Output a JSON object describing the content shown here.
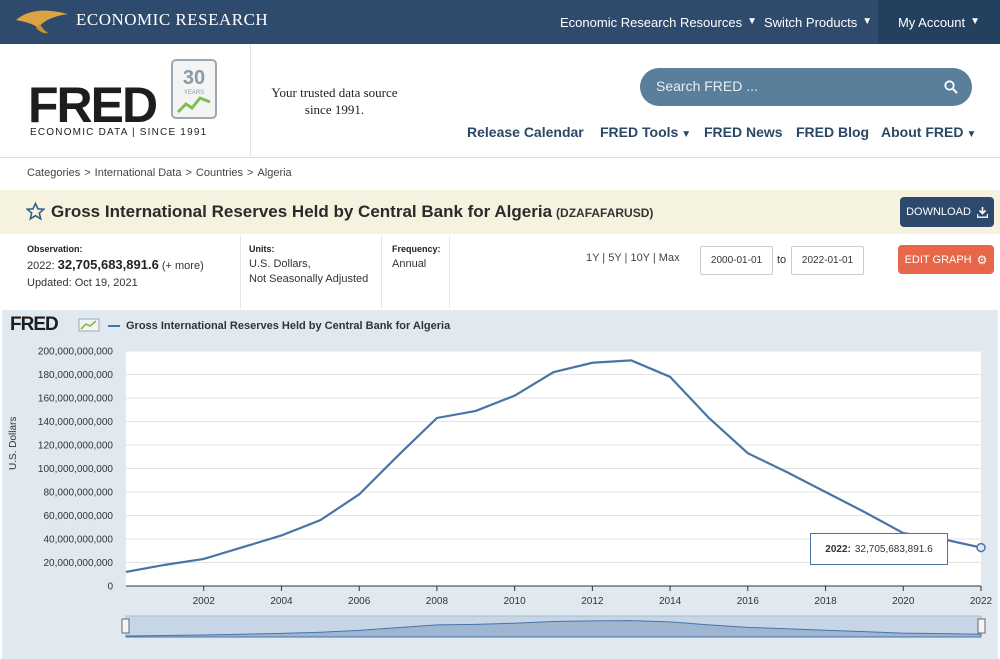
{
  "topbar": {
    "brand": "ECONOMIC RESEARCH",
    "nav_resources": "Economic Research Resources",
    "nav_switch": "Switch Products",
    "nav_account": "My Account"
  },
  "header": {
    "logo": "FRED",
    "logo_sub": "ECONOMIC DATA  |  SINCE 1991",
    "logo_badge": "30",
    "logo_badge_sub": "YEARS",
    "tagline_1": "Your trusted data source",
    "tagline_2": "since 1991.",
    "search_placeholder": "Search FRED ...",
    "nav": [
      "Release Calendar",
      "FRED Tools",
      "FRED News",
      "FRED Blog",
      "About FRED"
    ]
  },
  "breadcrumb": [
    "Categories",
    "International Data",
    "Countries",
    "Algeria"
  ],
  "series": {
    "title": "Gross International Reserves Held by Central Bank for Algeria",
    "id": "(DZAFAFARUSD)",
    "download_label": "DOWNLOAD"
  },
  "meta": {
    "observation_label": "Observation:",
    "observation_year": "2022:",
    "observation_value": "32,705,683,891.6",
    "observation_more": "(+ more)",
    "updated": "Updated: Oct 19, 2021",
    "units_label": "Units:",
    "units_1": "U.S. Dollars,",
    "units_2": "Not Seasonally Adjusted",
    "frequency_label": "Frequency:",
    "frequency": "Annual",
    "ranges": "1Y | 5Y | 10Y | Max",
    "date_from": "2000-01-01",
    "to_label": "to",
    "date_to": "2022-01-01",
    "edit_label": "EDIT GRAPH"
  },
  "chart": {
    "logo": "FRED",
    "legend": "Gross International Reserves Held by Central Bank for Algeria",
    "ylabel": "U.S. Dollars",
    "tooltip_label": "2022:",
    "tooltip_value": "32,705,683,891.6",
    "line_color": "#4a73a8"
  },
  "chart_data": {
    "type": "line",
    "title": "Gross International Reserves Held by Central Bank for Algeria",
    "xlabel": "",
    "ylabel": "U.S. Dollars",
    "ylim": [
      0,
      200000000000
    ],
    "xlim": [
      2000,
      2022
    ],
    "yticks": [
      "0",
      "20,000,000,000",
      "40,000,000,000",
      "60,000,000,000",
      "80,000,000,000",
      "100,000,000,000",
      "120,000,000,000",
      "140,000,000,000",
      "160,000,000,000",
      "180,000,000,000",
      "200,000,000,000"
    ],
    "xticks": [
      "2002",
      "2004",
      "2006",
      "2008",
      "2010",
      "2012",
      "2014",
      "2016",
      "2018",
      "2020",
      "2022"
    ],
    "grid": true,
    "series": [
      {
        "name": "Gross International Reserves Held by Central Bank for Algeria",
        "x": [
          2000,
          2001,
          2002,
          2003,
          2004,
          2005,
          2006,
          2007,
          2008,
          2009,
          2010,
          2011,
          2012,
          2013,
          2014,
          2015,
          2016,
          2017,
          2018,
          2019,
          2020,
          2021,
          2022
        ],
        "y": [
          12000000000,
          18000000000,
          23000000000,
          33000000000,
          43000000000,
          56000000000,
          78000000000,
          111000000000,
          143000000000,
          149000000000,
          162000000000,
          182000000000,
          190000000000,
          192000000000,
          178000000000,
          143000000000,
          113000000000,
          97000000000,
          80000000000,
          63000000000,
          45000000000,
          40000000000,
          32705683891.6
        ]
      }
    ]
  }
}
